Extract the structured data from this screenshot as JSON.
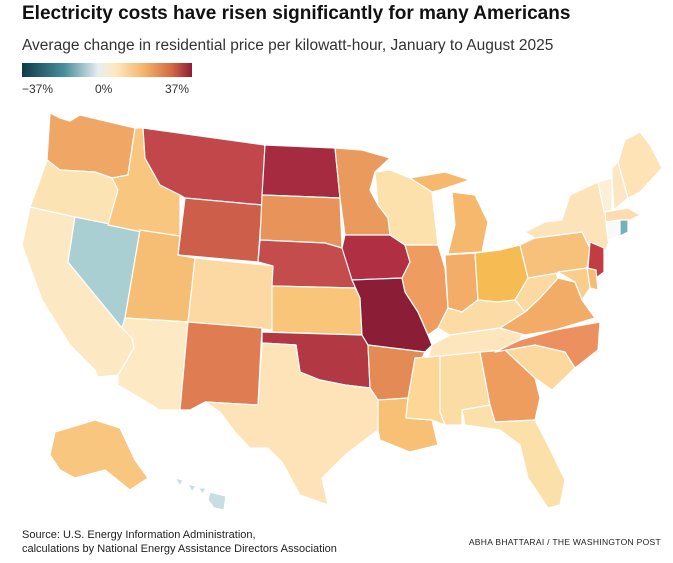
{
  "title": "Electricity costs have risen significantly for many Americans",
  "subtitle": "Average change in residential price per kilowatt-hour, January to August 2025",
  "legend": {
    "min_label": "−37%",
    "mid_label": "0%",
    "max_label": "37%",
    "colors": [
      "#0f3a46",
      "#4a8f9e",
      "#e8eef0",
      "#fde9bf",
      "#f3b36b",
      "#d46a44",
      "#8c1d37"
    ]
  },
  "source": {
    "line1": "Source: U.S. Energy Information Administration,",
    "line2": "calculations by National Energy Assistance Directors Association"
  },
  "credit": "ABHA BHATTARAI / THE WASHINGTON POST",
  "states": {
    "WA": "#f0a766",
    "OR": "#fce3b4",
    "CA": "#fce9c4",
    "NV": "#a9cfd3",
    "ID": "#f8c67f",
    "MT": "#c1474a",
    "WY": "#cd5f4a",
    "UT": "#f6bd75",
    "AZ": "#fde9c4",
    "CO": "#fcd9a2",
    "NM": "#e07c52",
    "ND": "#a72b40",
    "SD": "#e8935a",
    "NE": "#c54c4c",
    "KS": "#f9c578",
    "OK": "#b23844",
    "TX": "#fde3b7",
    "MN": "#ea9a5d",
    "IA": "#b02f42",
    "MO": "#8c1d37",
    "AR": "#e48a55",
    "LA": "#f7c074",
    "WI": "#fce1ad",
    "IL": "#ee9c60",
    "MI": "#f6b86d",
    "IN": "#f3ad69",
    "OH": "#f6bb52",
    "KY": "#fcdba5",
    "TN": "#fde6bd",
    "MS": "#fcd795",
    "AL": "#fcdca5",
    "GA": "#ee9d5f",
    "FL": "#fce0aa",
    "SC": "#fcd89e",
    "NC": "#ec9060",
    "VA": "#f3ab68",
    "WV": "#fcd9a0",
    "PA": "#f7c17b",
    "NY": "#fde3b9",
    "VT": "#fdefd5",
    "NH": "#fde6c2",
    "ME": "#fde3b5",
    "MA": "#fddcaf",
    "RI": "#70b3bc",
    "CT": "#f8fafa",
    "NJ": "#c23c43",
    "DE": "#f6bb76",
    "MD": "#f9cd8c",
    "AK": "#f8c67f",
    "HI": "#c7dfe2"
  }
}
